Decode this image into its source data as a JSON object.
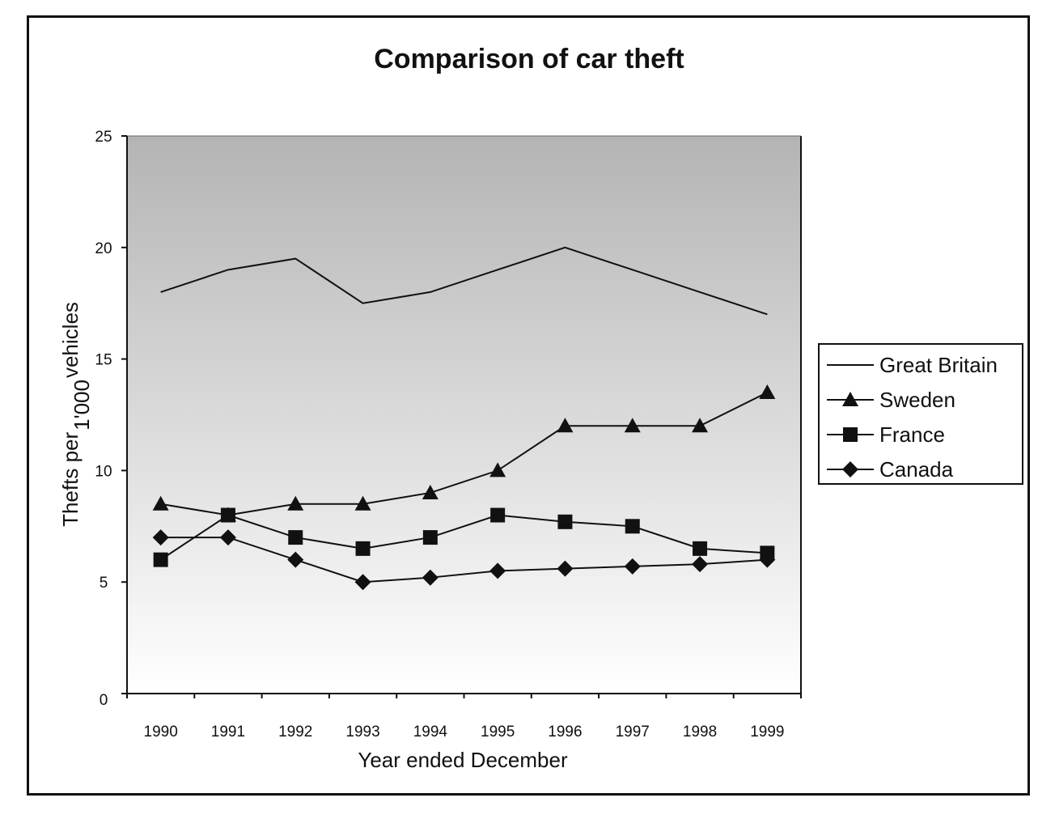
{
  "chart_data": {
    "type": "line",
    "title": "Comparison of car theft",
    "xlabel": "Year ended December",
    "ylabel": "Thefts per 1'000 vehicles",
    "ylabel_parts": {
      "before": "Thefts per",
      "subscript": "1'000",
      "after": "vehicles"
    },
    "categories": [
      "1990",
      "1991",
      "1992",
      "1993",
      "1994",
      "1995",
      "1996",
      "1997",
      "1998",
      "1999"
    ],
    "ylim": [
      0,
      25
    ],
    "yticks": [
      0,
      5,
      10,
      15,
      20,
      25
    ],
    "grid": false,
    "legend_position": "right",
    "background": "gradient gray to white",
    "series": [
      {
        "name": "Great Britain",
        "marker": "none",
        "values": [
          18,
          19,
          19.5,
          17.5,
          18,
          19,
          20,
          19,
          18,
          17
        ]
      },
      {
        "name": "Sweden",
        "marker": "triangle",
        "values": [
          8.5,
          8,
          8.5,
          8.5,
          9,
          10,
          12,
          12,
          12,
          13.5
        ]
      },
      {
        "name": "France",
        "marker": "square",
        "values": [
          6,
          8,
          7,
          6.5,
          7,
          8,
          7.7,
          7.5,
          6.5,
          6.3
        ]
      },
      {
        "name": "Canada",
        "marker": "diamond",
        "values": [
          7,
          7,
          6,
          5,
          5.2,
          5.5,
          5.6,
          5.7,
          5.8,
          6
        ]
      }
    ],
    "colors": {
      "line": "#111111",
      "plot_top": "#b4b4b4",
      "plot_bottom": "#ffffff"
    }
  }
}
